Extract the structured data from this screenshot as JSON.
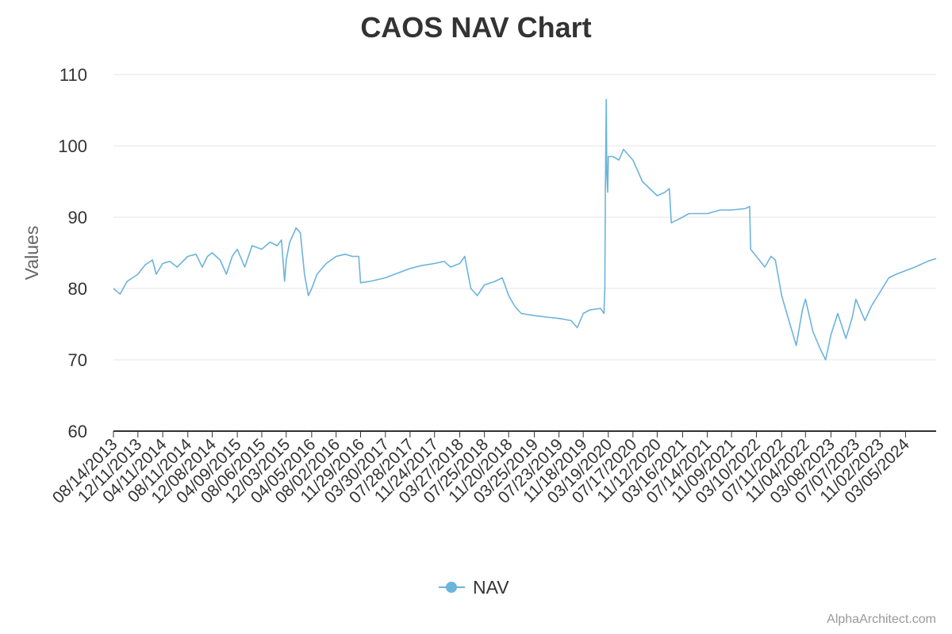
{
  "chart_data": {
    "type": "line",
    "title": "CAOS NAV Chart",
    "ylabel": "Values",
    "xlabel": "",
    "ylim": [
      60,
      110
    ],
    "yticks": [
      60,
      70,
      80,
      90,
      100,
      110
    ],
    "grid": true,
    "legend_position": "bottom-center",
    "x_tick_labels": [
      "08/14/2013",
      "12/11/2013",
      "04/11/2014",
      "08/11/2014",
      "12/08/2014",
      "04/09/2015",
      "08/06/2015",
      "12/03/2015",
      "04/05/2016",
      "08/02/2016",
      "11/29/2016",
      "03/30/2017",
      "07/28/2017",
      "11/24/2017",
      "03/27/2018",
      "07/25/2018",
      "11/20/2018",
      "03/25/2019",
      "07/23/2019",
      "11/18/2019",
      "03/19/2020",
      "07/17/2020",
      "11/12/2020",
      "03/16/2021",
      "07/14/2021",
      "11/09/2021",
      "03/10/2022",
      "07/11/2022",
      "11/04/2022",
      "03/08/2023",
      "07/07/2023",
      "11/02/2023",
      "03/05/2024"
    ],
    "series": [
      {
        "name": "NAV",
        "color": "#6cb4dc",
        "points": [
          [
            "08/14/2013",
            80.0
          ],
          [
            "09/15/2013",
            79.2
          ],
          [
            "10/20/2013",
            81.0
          ],
          [
            "12/11/2013",
            82.0
          ],
          [
            "01/15/2014",
            83.3
          ],
          [
            "02/20/2014",
            84.0
          ],
          [
            "03/10/2014",
            82.0
          ],
          [
            "04/11/2014",
            83.5
          ],
          [
            "05/15/2014",
            83.8
          ],
          [
            "06/20/2014",
            83.0
          ],
          [
            "08/11/2014",
            84.5
          ],
          [
            "09/20/2014",
            84.8
          ],
          [
            "10/20/2014",
            83.0
          ],
          [
            "11/15/2014",
            84.5
          ],
          [
            "12/08/2014",
            85.0
          ],
          [
            "01/15/2015",
            84.0
          ],
          [
            "02/15/2015",
            82.0
          ],
          [
            "03/15/2015",
            84.5
          ],
          [
            "04/09/2015",
            85.5
          ],
          [
            "05/15/2015",
            83.0
          ],
          [
            "06/20/2015",
            86.0
          ],
          [
            "08/06/2015",
            85.5
          ],
          [
            "09/15/2015",
            86.5
          ],
          [
            "10/20/2015",
            86.0
          ],
          [
            "11/10/2015",
            86.8
          ],
          [
            "11/25/2015",
            81.0
          ],
          [
            "12/03/2015",
            84.0
          ],
          [
            "12/20/2015",
            86.5
          ],
          [
            "01/05/2016",
            87.5
          ],
          [
            "01/20/2016",
            88.5
          ],
          [
            "02/10/2016",
            87.8
          ],
          [
            "03/01/2016",
            82.0
          ],
          [
            "03/20/2016",
            79.0
          ],
          [
            "04/05/2016",
            80.0
          ],
          [
            "05/01/2016",
            82.0
          ],
          [
            "06/15/2016",
            83.5
          ],
          [
            "08/02/2016",
            84.5
          ],
          [
            "09/15/2016",
            84.8
          ],
          [
            "10/20/2016",
            84.5
          ],
          [
            "11/20/2016",
            84.5
          ],
          [
            "11/29/2016",
            80.8
          ],
          [
            "01/15/2017",
            81.0
          ],
          [
            "03/30/2017",
            81.5
          ],
          [
            "05/15/2017",
            82.0
          ],
          [
            "07/28/2017",
            82.8
          ],
          [
            "09/20/2017",
            83.2
          ],
          [
            "11/24/2017",
            83.5
          ],
          [
            "01/10/2018",
            83.8
          ],
          [
            "02/10/2018",
            83.0
          ],
          [
            "03/27/2018",
            83.5
          ],
          [
            "04/20/2018",
            84.5
          ],
          [
            "05/20/2018",
            80.0
          ],
          [
            "06/20/2018",
            79.0
          ],
          [
            "07/25/2018",
            80.5
          ],
          [
            "09/15/2018",
            81.0
          ],
          [
            "10/20/2018",
            81.5
          ],
          [
            "11/20/2018",
            79.0
          ],
          [
            "12/20/2018",
            77.5
          ],
          [
            "01/20/2019",
            76.5
          ],
          [
            "03/25/2019",
            76.2
          ],
          [
            "05/20/2019",
            76.0
          ],
          [
            "07/23/2019",
            75.8
          ],
          [
            "09/20/2019",
            75.5
          ],
          [
            "10/20/2019",
            74.5
          ],
          [
            "11/18/2019",
            76.5
          ],
          [
            "12/20/2019",
            77.0
          ],
          [
            "02/10/2020",
            77.2
          ],
          [
            "02/27/2020",
            76.5
          ],
          [
            "03/02/2020",
            80.0
          ],
          [
            "03/05/2020",
            94.0
          ],
          [
            "03/09/2020",
            106.5
          ],
          [
            "03/12/2020",
            96.0
          ],
          [
            "03/16/2020",
            93.5
          ],
          [
            "03/19/2020",
            98.5
          ],
          [
            "04/10/2020",
            98.5
          ],
          [
            "05/10/2020",
            98.0
          ],
          [
            "06/01/2020",
            99.5
          ],
          [
            "07/17/2020",
            98.0
          ],
          [
            "09/01/2020",
            95.0
          ],
          [
            "11/12/2020",
            93.0
          ],
          [
            "12/20/2020",
            93.5
          ],
          [
            "01/10/2021",
            94.0
          ],
          [
            "01/20/2021",
            89.2
          ],
          [
            "03/16/2021",
            90.0
          ],
          [
            "04/15/2021",
            90.5
          ],
          [
            "07/14/2021",
            90.5
          ],
          [
            "09/15/2021",
            91.0
          ],
          [
            "11/09/2021",
            91.0
          ],
          [
            "01/15/2022",
            91.2
          ],
          [
            "02/05/2022",
            91.5
          ],
          [
            "02/10/2022",
            85.5
          ],
          [
            "03/10/2022",
            84.5
          ],
          [
            "04/20/2022",
            83.0
          ],
          [
            "05/20/2022",
            84.5
          ],
          [
            "06/10/2022",
            84.0
          ],
          [
            "07/11/2022",
            79.0
          ],
          [
            "08/10/2022",
            76.0
          ],
          [
            "09/20/2022",
            72.0
          ],
          [
            "10/20/2022",
            77.0
          ],
          [
            "11/04/2022",
            78.5
          ],
          [
            "12/10/2022",
            74.0
          ],
          [
            "01/15/2023",
            71.5
          ],
          [
            "02/10/2023",
            70.0
          ],
          [
            "03/08/2023",
            73.5
          ],
          [
            "04/10/2023",
            76.5
          ],
          [
            "05/20/2023",
            73.0
          ],
          [
            "06/20/2023",
            76.0
          ],
          [
            "07/07/2023",
            78.5
          ],
          [
            "08/20/2023",
            75.5
          ],
          [
            "09/20/2023",
            77.5
          ],
          [
            "11/02/2023",
            79.5
          ],
          [
            "12/15/2023",
            81.5
          ],
          [
            "01/20/2024",
            82.0
          ],
          [
            "03/05/2024",
            82.5
          ],
          [
            "04/20/2024",
            83.0
          ],
          [
            "06/20/2024",
            83.8
          ],
          [
            "08/01/2024",
            84.2
          ]
        ]
      }
    ]
  },
  "legend": {
    "label": "NAV"
  },
  "credit": "AlphaArchitect.com"
}
